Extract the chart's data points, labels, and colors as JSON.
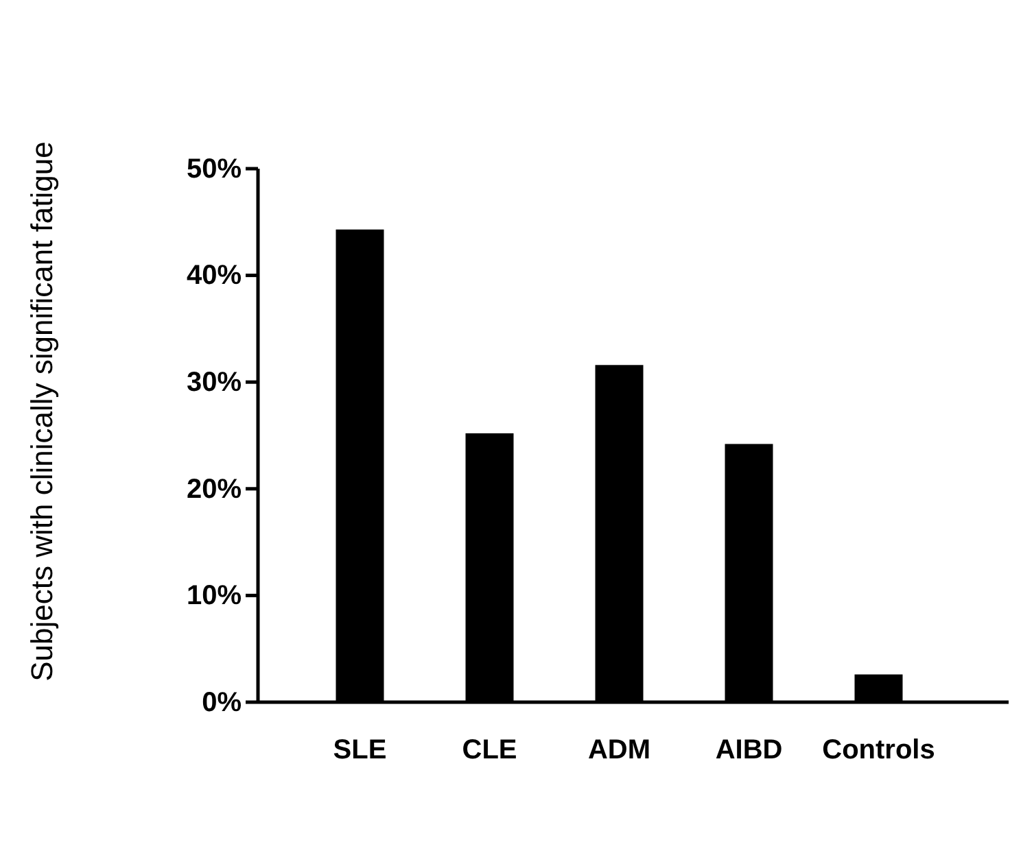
{
  "chart_data": {
    "type": "bar",
    "ylabel": "Subjects with clinically significant fatigue",
    "categories": [
      "SLE",
      "CLE",
      "ADM",
      "AIBD",
      "Controls"
    ],
    "values": [
      44.3,
      25.2,
      31.6,
      24.2,
      2.6
    ],
    "color": "#000000",
    "ylim": [
      0,
      50
    ],
    "yticks": [
      {
        "value": 0,
        "label": "0%"
      },
      {
        "value": 10,
        "label": "10%"
      },
      {
        "value": 20,
        "label": "20%"
      },
      {
        "value": 30,
        "label": "30%"
      },
      {
        "value": 40,
        "label": "40%"
      },
      {
        "value": 50,
        "label": "50%"
      }
    ],
    "grid": false
  }
}
